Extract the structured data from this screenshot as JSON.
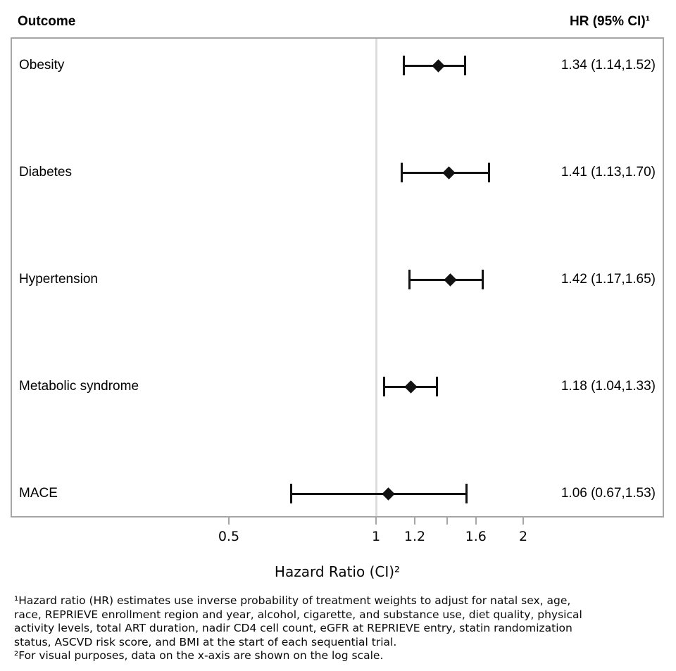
{
  "header": {
    "outcome_label": "Outcome",
    "hr_label": "HR (95% CI)¹"
  },
  "chart_data": {
    "type": "scatter",
    "subtype": "forest-plot",
    "x_scale": "log",
    "xlabel": "Hazard Ratio (CI)²",
    "reference_line": 1,
    "x_ticks": [
      {
        "value": 0.5,
        "label": "0.5"
      },
      {
        "value": 1,
        "label": "1"
      },
      {
        "value": 1.2,
        "label": "1.2"
      },
      {
        "value": 1.4,
        "label": ""
      },
      {
        "value": 1.6,
        "label": "1.6"
      },
      {
        "value": 2,
        "label": "2"
      }
    ],
    "rows": [
      {
        "outcome": "Obesity",
        "hr": 1.34,
        "ci_low": 1.14,
        "ci_high": 1.52,
        "label": "1.34 (1.14,1.52)"
      },
      {
        "outcome": "Diabetes",
        "hr": 1.41,
        "ci_low": 1.13,
        "ci_high": 1.7,
        "label": "1.41 (1.13,1.70)"
      },
      {
        "outcome": "Hypertension",
        "hr": 1.42,
        "ci_low": 1.17,
        "ci_high": 1.65,
        "label": "1.42 (1.17,1.65)"
      },
      {
        "outcome": "Metabolic syndrome",
        "hr": 1.18,
        "ci_low": 1.04,
        "ci_high": 1.33,
        "label": "1.18 (1.04,1.33)"
      },
      {
        "outcome": "MACE",
        "hr": 1.06,
        "ci_low": 0.67,
        "ci_high": 1.53,
        "label": "1.06 (0.67,1.53)"
      }
    ]
  },
  "footnotes": {
    "lines": [
      "¹Hazard ratio (HR) estimates use inverse probability of treatment weights to adjust for natal sex, age,",
      "race, REPRIEVE enrollment region and year, alcohol, cigarette, and substance use, diet quality, physical",
      "activity levels, total ART duration, nadir CD4 cell count, eGFR at REPRIEVE entry, statin randomization",
      "status, ASCVD risk score, and BMI at the start of each sequential trial.",
      "²For visual purposes, data on the x-axis are shown on the log scale."
    ]
  },
  "colors": {
    "marker": "#121212",
    "plot_border": "#a6a6a6",
    "reference_line": "#dcdcdc",
    "tick": "#a6a6a6",
    "text": "#000000"
  }
}
